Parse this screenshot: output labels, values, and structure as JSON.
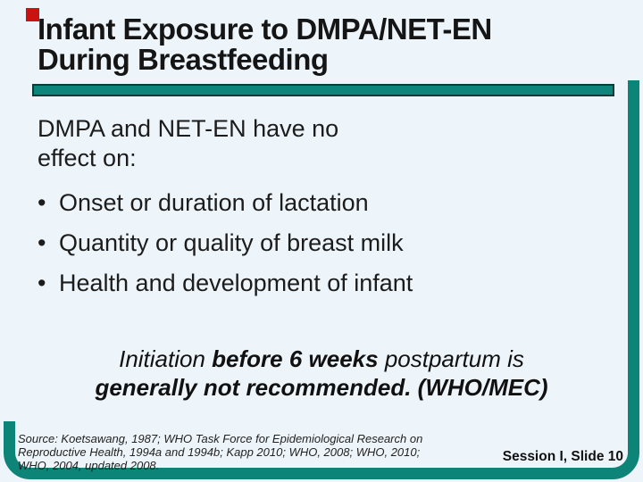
{
  "slide": {
    "title": {
      "line1": "Infant Exposure to DMPA/NET-EN",
      "line2": "During Breastfeeding"
    },
    "intro": {
      "line1": "DMPA and NET-EN have no",
      "line2": "effect on:"
    },
    "bullet_char": "•",
    "bullets": [
      {
        "text": "Onset or duration of lactation"
      },
      {
        "text": "Quantity or quality of breast milk"
      },
      {
        "text": "Health and development of infant"
      }
    ],
    "quote": {
      "parts": [
        {
          "text": "Initiation "
        },
        {
          "text": "before 6 weeks"
        },
        {
          "text": " postpartum is "
        },
        {
          "text": "generally not recommended."
        },
        {
          "text": " (WHO/MEC)"
        }
      ]
    },
    "source": {
      "lines": [
        "Source: Koetsawang, 1987; WHO Task Force for Epidemiological Research on",
        "Reproductive Health, 1994a and 1994b; Kapp 2010; WHO, 2008; WHO, 2010;",
        "WHO, 2004, updated 2008."
      ]
    },
    "footer": {
      "slide_label": "Session I, Slide 10"
    },
    "colors": {
      "background": "#eef5fa",
      "accent_teal": "#0d8478",
      "accent_teal_outline": "#073f38",
      "accent_red": "#cc1111",
      "text": "#151515"
    }
  }
}
